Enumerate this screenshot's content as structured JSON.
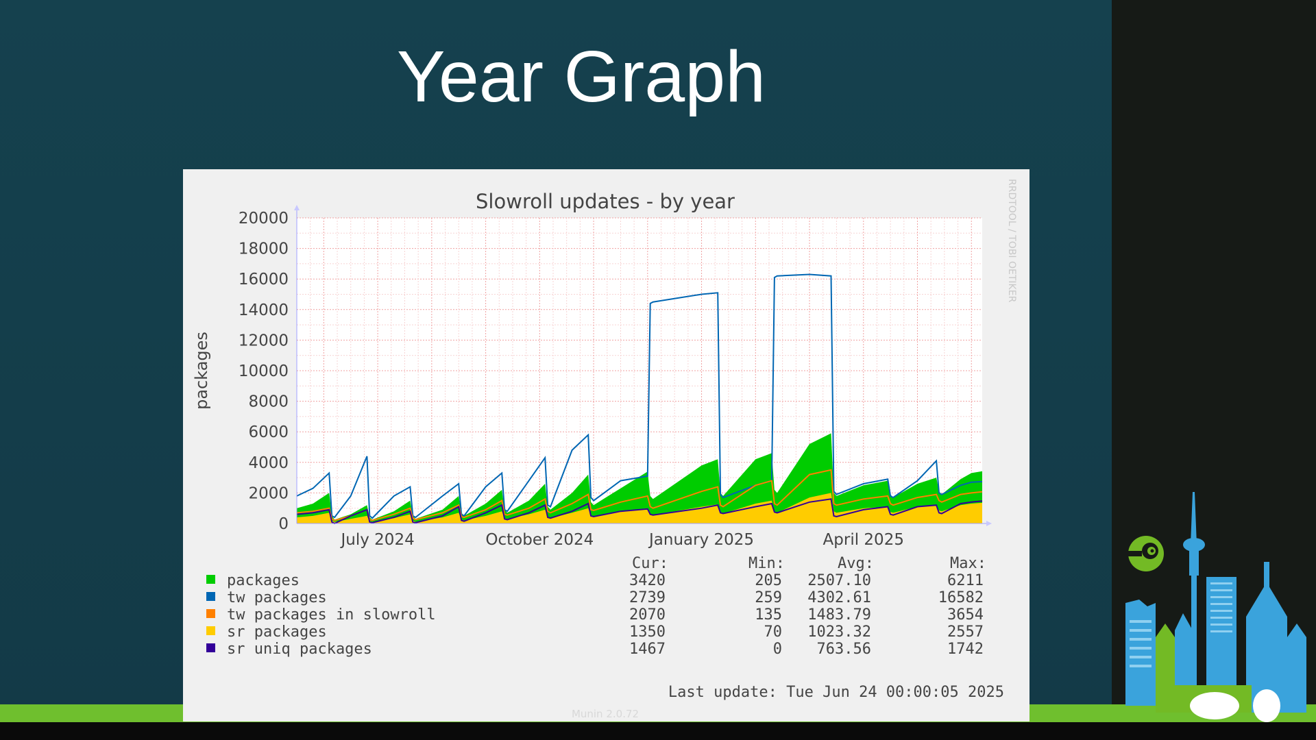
{
  "slide": {
    "title": "Year Graph"
  },
  "graph": {
    "side_label": "RRDTOOL / TOBI OETIKER",
    "footer": "Munin 2.0.72",
    "last_update": "Last update: Tue Jun 24 00:00:05 2025",
    "legend_headers": [
      "Cur:",
      "Min:",
      "Avg:",
      "Max:"
    ],
    "legend_rows": [
      {
        "name": "packages",
        "color": "#00cc00",
        "cur": "3420",
        "min": "205",
        "avg": "2507.10",
        "max": "6211"
      },
      {
        "name": "tw packages",
        "color": "#0066b3",
        "cur": "2739",
        "min": "259",
        "avg": "4302.61",
        "max": "16582"
      },
      {
        "name": "tw packages in slowroll",
        "color": "#ff8000",
        "cur": "2070",
        "min": "135",
        "avg": "1483.79",
        "max": "3654"
      },
      {
        "name": "sr packages",
        "color": "#ffcc00",
        "cur": "1350",
        "min": "70",
        "avg": "1023.32",
        "max": "2557"
      },
      {
        "name": "sr uniq packages",
        "color": "#330099",
        "cur": "1467",
        "min": "0",
        "avg": "763.56",
        "max": "1742"
      }
    ]
  },
  "chart_data": {
    "type": "area",
    "title": "Slowroll updates - by year",
    "ylabel": "packages",
    "xlabel": "",
    "ylim": [
      0,
      20000
    ],
    "yticks": [
      0,
      2000,
      4000,
      6000,
      8000,
      10000,
      12000,
      14000,
      16000,
      18000,
      20000
    ],
    "x_tick_labels": [
      "July 2024",
      "October 2024",
      "January 2025",
      "April 2025"
    ],
    "x_tick_positions_month": [
      1.5,
      4.5,
      7.5,
      10.5
    ],
    "x_unit": "months since 2024-05-15",
    "x": [
      0,
      0.3,
      0.6,
      0.65,
      0.7,
      1.0,
      1.3,
      1.35,
      1.4,
      1.8,
      2.1,
      2.15,
      2.2,
      2.7,
      3.0,
      3.05,
      3.1,
      3.5,
      3.8,
      3.85,
      3.9,
      4.3,
      4.6,
      4.65,
      4.7,
      5.1,
      5.4,
      5.45,
      5.5,
      6.0,
      6.5,
      6.55,
      6.6,
      7.5,
      7.8,
      7.85,
      7.9,
      8.5,
      8.8,
      8.85,
      8.9,
      9.5,
      9.9,
      9.95,
      10.0,
      10.5,
      10.95,
      11.0,
      11.05,
      11.5,
      11.85,
      11.9,
      11.95,
      12.3,
      12.5,
      12.7
    ],
    "series": [
      {
        "name": "packages",
        "kind": "area",
        "color": "#00cc00",
        "values": [
          1000,
          1300,
          2000,
          500,
          250,
          600,
          1200,
          400,
          250,
          800,
          1500,
          500,
          300,
          900,
          1800,
          700,
          500,
          1300,
          2200,
          900,
          700,
          1500,
          2600,
          1100,
          900,
          2000,
          3200,
          1400,
          1200,
          2300,
          3400,
          1800,
          1600,
          3800,
          4200,
          2000,
          1800,
          4200,
          4600,
          2200,
          2000,
          5200,
          5900,
          2000,
          1800,
          2500,
          2800,
          1900,
          1700,
          2600,
          3000,
          2100,
          1900,
          2900,
          3300,
          3420
        ]
      },
      {
        "name": "sr packages",
        "kind": "area",
        "color": "#ffcc00",
        "values": [
          400,
          500,
          700,
          200,
          100,
          300,
          500,
          150,
          100,
          350,
          600,
          200,
          100,
          400,
          700,
          250,
          200,
          500,
          800,
          350,
          300,
          600,
          900,
          400,
          350,
          700,
          1000,
          500,
          450,
          800,
          1000,
          600,
          550,
          1100,
          1250,
          700,
          650,
          1300,
          1500,
          750,
          700,
          1700,
          2000,
          800,
          700,
          1000,
          1100,
          750,
          700,
          1100,
          1200,
          850,
          800,
          1200,
          1300,
          1350
        ]
      },
      {
        "name": "tw packages",
        "kind": "line",
        "color": "#0066b3",
        "values": [
          1800,
          2300,
          3300,
          500,
          400,
          1800,
          4400,
          500,
          350,
          1800,
          2400,
          500,
          400,
          1800,
          2600,
          600,
          500,
          2400,
          3300,
          900,
          800,
          2800,
          4300,
          1200,
          1100,
          4800,
          5800,
          1700,
          1500,
          2800,
          3100,
          14400,
          14500,
          15000,
          15100,
          1900,
          1700,
          2500,
          2800,
          16100,
          16200,
          16300,
          16200,
          2100,
          1900,
          2600,
          2900,
          1800,
          1700,
          2800,
          4100,
          2000,
          1900,
          2500,
          2700,
          2739
        ]
      },
      {
        "name": "tw packages in slowroll",
        "kind": "line",
        "color": "#ff8000",
        "values": [
          700,
          800,
          1000,
          300,
          200,
          500,
          900,
          250,
          200,
          600,
          1000,
          350,
          250,
          700,
          1200,
          450,
          400,
          900,
          1500,
          600,
          550,
          1000,
          1600,
          800,
          700,
          1300,
          1900,
          900,
          850,
          1400,
          1800,
          1100,
          1000,
          2100,
          2400,
          1200,
          1100,
          2500,
          2800,
          1300,
          1200,
          3200,
          3500,
          1300,
          1200,
          1600,
          1800,
          1300,
          1200,
          1700,
          1900,
          1500,
          1400,
          1900,
          2000,
          2070
        ]
      },
      {
        "name": "sr uniq packages",
        "kind": "line",
        "color": "#330099",
        "values": [
          600,
          700,
          900,
          100,
          0,
          500,
          900,
          100,
          50,
          400,
          800,
          100,
          50,
          500,
          1100,
          200,
          150,
          700,
          1200,
          300,
          250,
          700,
          1200,
          400,
          350,
          800,
          1300,
          500,
          450,
          800,
          950,
          600,
          550,
          1000,
          1200,
          700,
          650,
          1100,
          1300,
          750,
          700,
          1400,
          1600,
          500,
          450,
          900,
          1100,
          600,
          550,
          1100,
          1200,
          700,
          650,
          1300,
          1400,
          1467
        ]
      }
    ]
  }
}
